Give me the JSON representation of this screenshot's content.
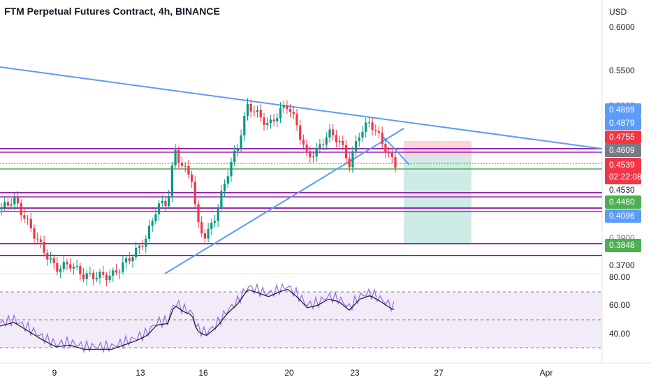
{
  "header": {
    "title": "FTM Perpetual Futures Contract, 4h, BINANCE"
  },
  "price_axis": {
    "currency": "USD",
    "ticks": [
      "0.6000",
      "0.5500",
      "0.5100",
      "0.3900",
      "0.3700"
    ]
  },
  "price_tags": [
    {
      "label": "0.4899",
      "color": "#5b9cf6"
    },
    {
      "label": "0.4879",
      "color": "#5b9cf6"
    },
    {
      "label": "0.4755",
      "color": "#f23645"
    },
    {
      "label": "0.4609",
      "color": "#787b86"
    },
    {
      "label": "0.4539",
      "sub": "02:22:08",
      "color": "#f23645"
    },
    {
      "label": "0.4530",
      "color": "#9c27b0"
    },
    {
      "label": "0.4480",
      "color": "#4caf50"
    },
    {
      "label": "0.4096",
      "color": "#5b9cf6"
    },
    {
      "label": "0.3848",
      "color": "#4caf50"
    }
  ],
  "rsi_axis": {
    "ticks": [
      "80.00",
      "60.00",
      "40.00"
    ]
  },
  "time_axis": {
    "labels": [
      "9",
      "13",
      "16",
      "20",
      "23",
      "27",
      "Apr"
    ]
  },
  "colors": {
    "up": "#089981",
    "down": "#f23645",
    "trend": "#5b9cf6",
    "level": "#9c27b0",
    "support": "#4caf50",
    "rsi": "#9c6ade"
  }
}
